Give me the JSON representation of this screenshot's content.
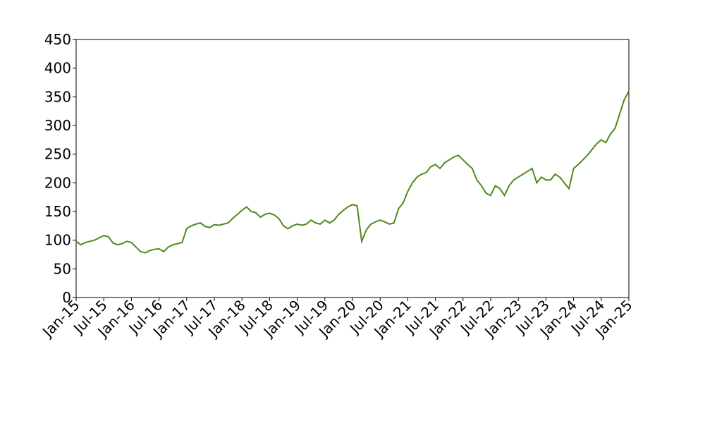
{
  "chart_data": {
    "type": "line",
    "color": "#4e8a1e",
    "x": [
      "2015-01",
      "2015-02",
      "2015-03",
      "2015-04",
      "2015-05",
      "2015-06",
      "2015-07",
      "2015-08",
      "2015-09",
      "2015-10",
      "2015-11",
      "2015-12",
      "2016-01",
      "2016-02",
      "2016-03",
      "2016-04",
      "2016-05",
      "2016-06",
      "2016-07",
      "2016-08",
      "2016-09",
      "2016-10",
      "2016-11",
      "2016-12",
      "2017-01",
      "2017-02",
      "2017-03",
      "2017-04",
      "2017-05",
      "2017-06",
      "2017-07",
      "2017-08",
      "2017-09",
      "2017-10",
      "2017-11",
      "2017-12",
      "2018-01",
      "2018-02",
      "2018-03",
      "2018-04",
      "2018-05",
      "2018-06",
      "2018-07",
      "2018-08",
      "2018-09",
      "2018-10",
      "2018-11",
      "2018-12",
      "2019-01",
      "2019-02",
      "2019-03",
      "2019-04",
      "2019-05",
      "2019-06",
      "2019-07",
      "2019-08",
      "2019-09",
      "2019-10",
      "2019-11",
      "2019-12",
      "2020-01",
      "2020-02",
      "2020-03",
      "2020-04",
      "2020-05",
      "2020-06",
      "2020-07",
      "2020-08",
      "2020-09",
      "2020-10",
      "2020-11",
      "2020-12",
      "2021-01",
      "2021-02",
      "2021-03",
      "2021-04",
      "2021-05",
      "2021-06",
      "2021-07",
      "2021-08",
      "2021-09",
      "2021-10",
      "2021-11",
      "2021-12",
      "2022-01",
      "2022-02",
      "2022-03",
      "2022-04",
      "2022-05",
      "2022-06",
      "2022-07",
      "2022-08",
      "2022-09",
      "2022-10",
      "2022-11",
      "2022-12",
      "2023-01",
      "2023-02",
      "2023-03",
      "2023-04",
      "2023-05",
      "2023-06",
      "2023-07",
      "2023-08",
      "2023-09",
      "2023-10",
      "2023-11",
      "2023-12",
      "2024-01",
      "2024-02",
      "2024-03",
      "2024-04",
      "2024-05",
      "2024-06",
      "2024-07",
      "2024-08",
      "2024-09",
      "2024-10",
      "2024-11",
      "2024-12",
      "2025-01"
    ],
    "values": [
      98,
      92,
      96,
      98,
      100,
      104,
      108,
      106,
      95,
      92,
      94,
      98,
      96,
      88,
      80,
      78,
      82,
      84,
      85,
      80,
      88,
      92,
      94,
      96,
      120,
      125,
      128,
      130,
      124,
      122,
      127,
      126,
      128,
      130,
      138,
      145,
      152,
      158,
      150,
      148,
      140,
      145,
      147,
      144,
      138,
      125,
      120,
      125,
      128,
      126,
      128,
      135,
      130,
      128,
      135,
      130,
      135,
      145,
      152,
      158,
      162,
      160,
      98,
      118,
      128,
      132,
      135,
      132,
      128,
      130,
      155,
      165,
      185,
      200,
      210,
      215,
      218,
      228,
      232,
      225,
      235,
      240,
      245,
      248,
      240,
      232,
      225,
      205,
      195,
      182,
      178,
      195,
      190,
      178,
      195,
      205,
      210,
      215,
      220,
      225,
      200,
      210,
      205,
      205,
      215,
      210,
      200,
      190,
      225,
      232,
      240,
      248,
      258,
      268,
      275,
      270,
      285,
      295,
      320,
      345,
      360
    ],
    "xlim": [
      "2015-01",
      "2025-01"
    ],
    "xticks": [
      {
        "value": "2015-01",
        "label": "Jan-15"
      },
      {
        "value": "2015-07",
        "label": "Jul-15"
      },
      {
        "value": "2016-01",
        "label": "Jan-16"
      },
      {
        "value": "2016-07",
        "label": "Jul-16"
      },
      {
        "value": "2017-01",
        "label": "Jan-17"
      },
      {
        "value": "2017-07",
        "label": "Jul-17"
      },
      {
        "value": "2018-01",
        "label": "Jan-18"
      },
      {
        "value": "2018-07",
        "label": "Jul-18"
      },
      {
        "value": "2019-01",
        "label": "Jan-19"
      },
      {
        "value": "2019-07",
        "label": "Jul-19"
      },
      {
        "value": "2020-01",
        "label": "Jan-20"
      },
      {
        "value": "2020-07",
        "label": "Jul-20"
      },
      {
        "value": "2021-01",
        "label": "Jan-21"
      },
      {
        "value": "2021-07",
        "label": "Jul-21"
      },
      {
        "value": "2022-01",
        "label": "Jan-22"
      },
      {
        "value": "2022-07",
        "label": "Jul-22"
      },
      {
        "value": "2023-01",
        "label": "Jan-23"
      },
      {
        "value": "2023-07",
        "label": "Jul-23"
      },
      {
        "value": "2024-01",
        "label": "Jan-24"
      },
      {
        "value": "2024-07",
        "label": "Jul-24"
      },
      {
        "value": "2025-01",
        "label": "Jan-25"
      }
    ],
    "ylim": [
      0,
      450
    ],
    "yticks": [
      0,
      50,
      100,
      150,
      200,
      250,
      300,
      350,
      400,
      450
    ],
    "grid": false
  }
}
